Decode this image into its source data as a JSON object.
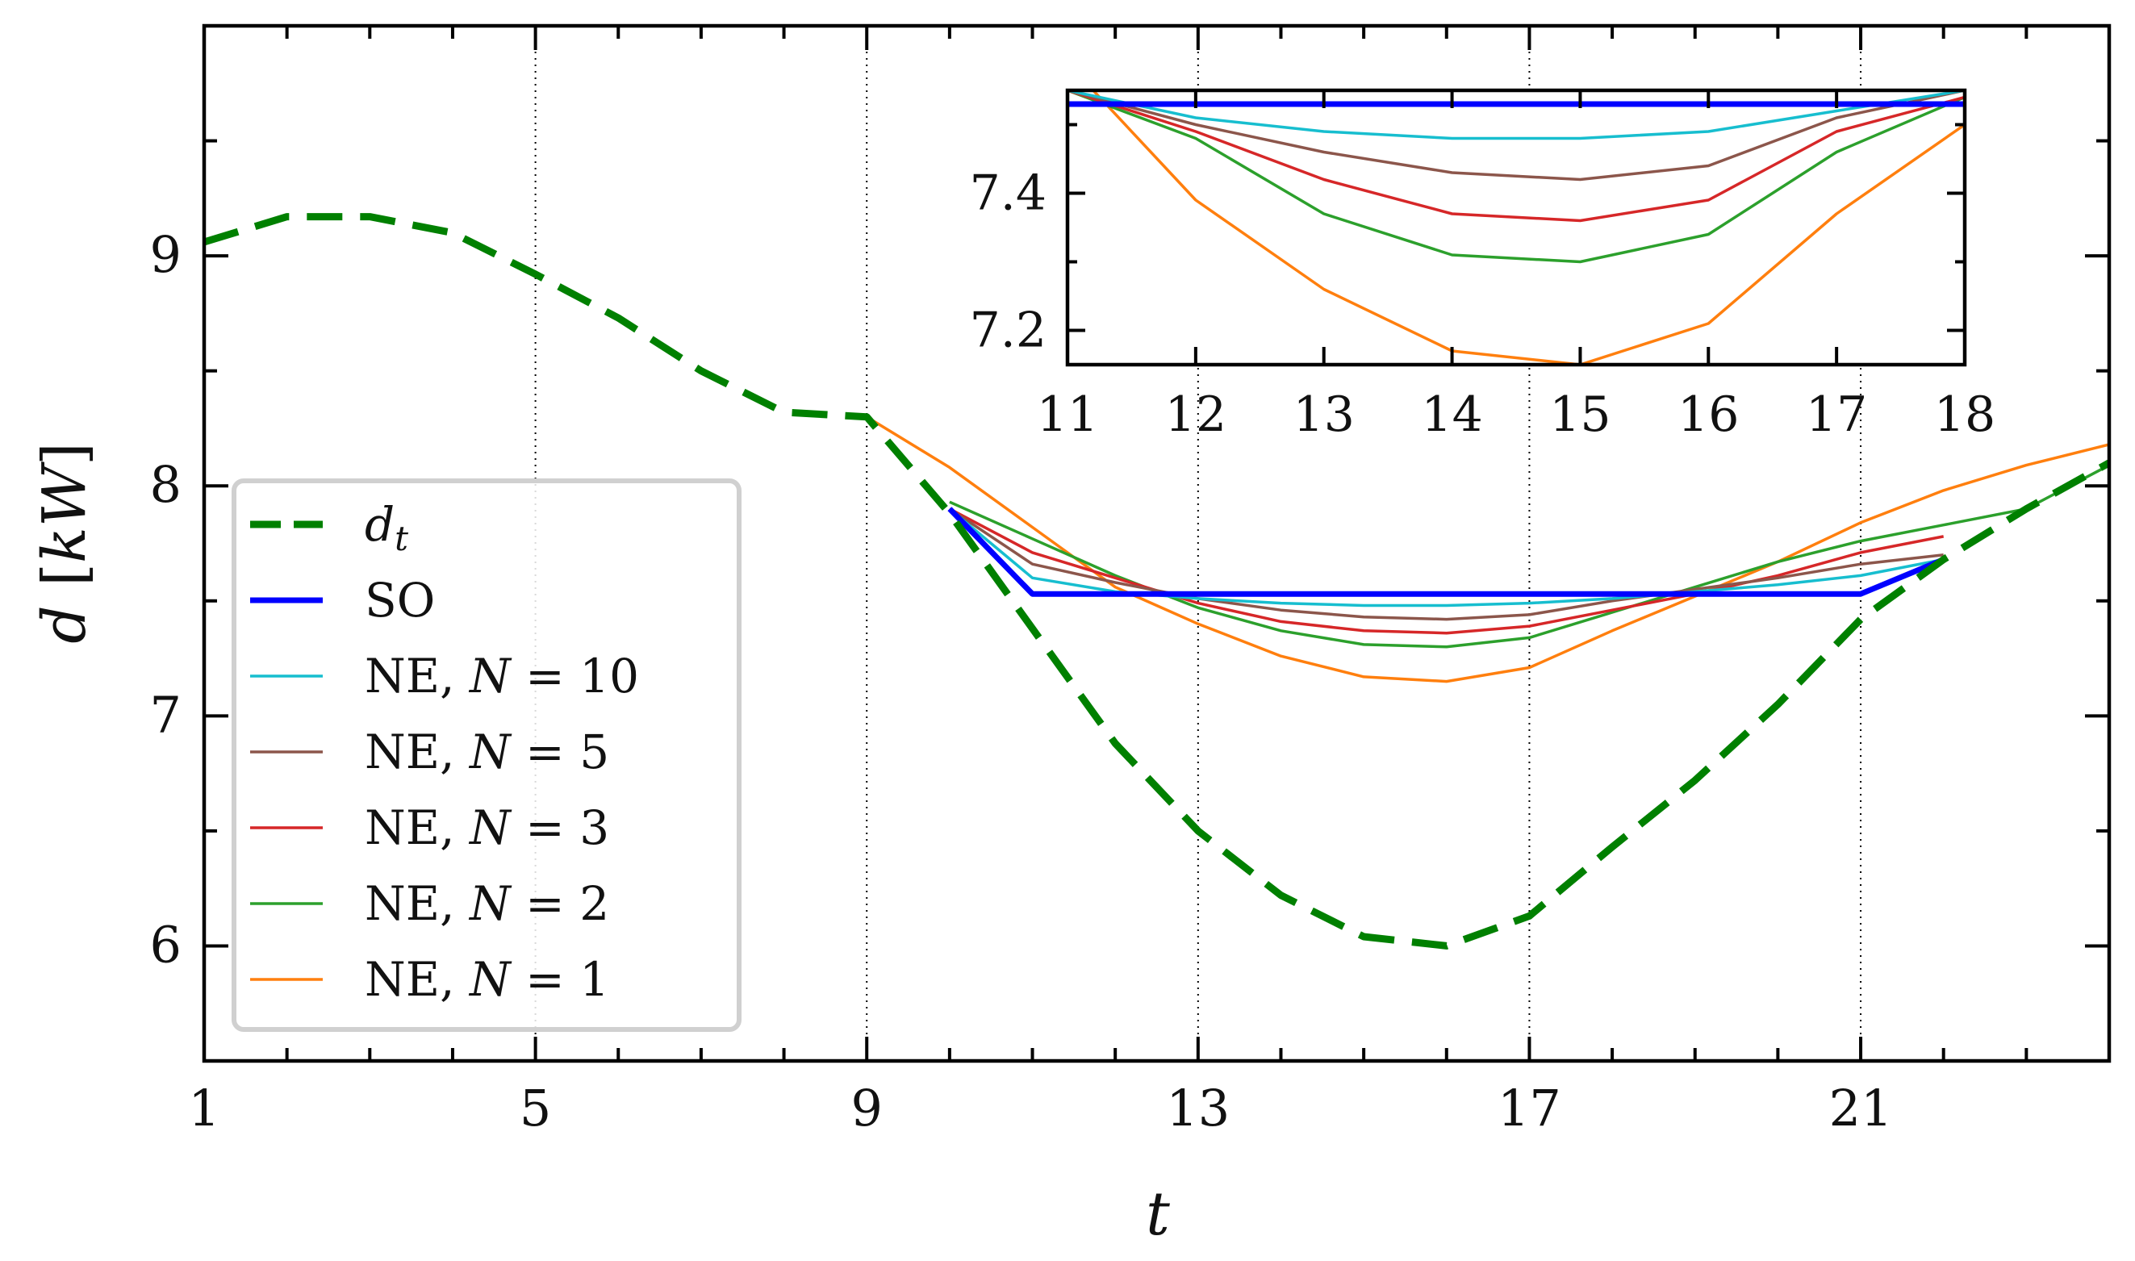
{
  "chart_data": [
    {
      "type": "line",
      "role": "main",
      "title": "",
      "xlabel": "t",
      "ylabel_main": "d",
      "ylabel_unit": "kW",
      "xlim": [
        1,
        24
      ],
      "ylim": [
        5.5,
        10.0
      ],
      "xticks": [
        1,
        5,
        9,
        13,
        17,
        21
      ],
      "yticks": [
        6,
        7,
        8,
        9
      ],
      "x_minor_step": 1,
      "y_minor_step": 0.5,
      "vertical_reference_lines": [
        5,
        9,
        13,
        17,
        21
      ],
      "legend_position": "lower-left",
      "series": [
        {
          "id": "dt",
          "name": "d",
          "name_sub": "t",
          "color": "#008000",
          "style": "dashed",
          "width": 9,
          "x": [
            1,
            2,
            3,
            4,
            5,
            6,
            7,
            8,
            9,
            10,
            11,
            12,
            13,
            14,
            15,
            16,
            17,
            18,
            19,
            20,
            21,
            22,
            23,
            24
          ],
          "y": [
            9.06,
            9.17,
            9.17,
            9.1,
            8.92,
            8.73,
            8.5,
            8.32,
            8.3,
            7.88,
            7.38,
            6.88,
            6.5,
            6.22,
            6.04,
            6.0,
            6.13,
            6.43,
            6.72,
            7.05,
            7.42,
            7.68,
            7.9,
            8.1
          ]
        },
        {
          "id": "so",
          "name": "SO",
          "color": "#0000ff",
          "style": "solid",
          "width": 7,
          "x": [
            10,
            11,
            12,
            13,
            14,
            15,
            16,
            17,
            18,
            19,
            20,
            21,
            22
          ],
          "y": [
            7.9,
            7.53,
            7.53,
            7.53,
            7.53,
            7.53,
            7.53,
            7.53,
            7.53,
            7.53,
            7.53,
            7.53,
            7.68
          ]
        },
        {
          "id": "ne10",
          "name": "NE, ",
          "name_var": "N",
          "name_val": " = 10",
          "color": "#17becf",
          "style": "solid",
          "width": 3.5,
          "x": [
            10,
            11,
            12,
            13,
            14,
            15,
            16,
            17,
            18,
            19,
            20,
            21,
            22
          ],
          "y": [
            7.9,
            7.6,
            7.54,
            7.51,
            7.49,
            7.48,
            7.48,
            7.49,
            7.51,
            7.54,
            7.57,
            7.61,
            7.68
          ]
        },
        {
          "id": "ne5",
          "name": "NE, ",
          "name_var": "N",
          "name_val": " = 5",
          "color": "#8c564b",
          "style": "solid",
          "width": 3.5,
          "x": [
            10,
            11,
            12,
            13,
            14,
            15,
            16,
            17,
            18,
            19,
            20,
            21,
            22
          ],
          "y": [
            7.9,
            7.66,
            7.58,
            7.51,
            7.46,
            7.43,
            7.42,
            7.44,
            7.5,
            7.55,
            7.6,
            7.66,
            7.7
          ]
        },
        {
          "id": "ne3",
          "name": "NE, ",
          "name_var": "N",
          "name_val": " = 3",
          "color": "#d62728",
          "style": "solid",
          "width": 3.5,
          "x": [
            10,
            11,
            12,
            13,
            14,
            15,
            16,
            17,
            18,
            19,
            20,
            21,
            22
          ],
          "y": [
            7.9,
            7.71,
            7.6,
            7.49,
            7.41,
            7.37,
            7.36,
            7.39,
            7.46,
            7.53,
            7.61,
            7.71,
            7.78
          ]
        },
        {
          "id": "ne2",
          "name": "NE, ",
          "name_var": "N",
          "name_val": " = 2",
          "color": "#2ca02c",
          "style": "solid",
          "width": 3.5,
          "x": [
            10,
            11,
            12,
            13,
            14,
            15,
            16,
            17,
            18,
            19,
            20,
            21,
            22,
            23,
            24
          ],
          "y": [
            7.93,
            7.77,
            7.61,
            7.47,
            7.37,
            7.31,
            7.3,
            7.34,
            7.45,
            7.56,
            7.67,
            7.76,
            7.83,
            7.9,
            8.09
          ]
        },
        {
          "id": "ne1",
          "name": "NE, ",
          "name_var": "N",
          "name_val": " = 1",
          "color": "#ff7f0e",
          "style": "solid",
          "width": 3.5,
          "x": [
            9,
            10,
            11,
            12,
            13,
            14,
            15,
            16,
            17,
            18,
            19,
            20,
            21,
            22,
            23,
            24
          ],
          "y": [
            8.3,
            8.08,
            7.82,
            7.56,
            7.4,
            7.26,
            7.17,
            7.15,
            7.21,
            7.37,
            7.52,
            7.67,
            7.84,
            7.98,
            8.09,
            8.18
          ]
        }
      ]
    },
    {
      "type": "line",
      "role": "inset",
      "xlim": [
        11,
        18
      ],
      "ylim": [
        7.15,
        7.55
      ],
      "xticks": [
        11,
        12,
        13,
        14,
        15,
        16,
        17,
        18
      ],
      "yticks": [
        7.2,
        7.4
      ],
      "ytick_labels": [
        "7.2",
        "7.4"
      ],
      "y_minor_step": 0.1,
      "series": [
        {
          "id": "so",
          "color": "#0000ff",
          "width": 7,
          "x": [
            11,
            12,
            13,
            14,
            15,
            16,
            17,
            18
          ],
          "y": [
            7.53,
            7.53,
            7.53,
            7.53,
            7.53,
            7.53,
            7.53,
            7.53
          ]
        },
        {
          "id": "ne10",
          "color": "#17becf",
          "width": 3.5,
          "x": [
            11,
            12,
            13,
            14,
            15,
            16,
            17,
            18
          ],
          "y": [
            7.55,
            7.51,
            7.49,
            7.48,
            7.48,
            7.49,
            7.52,
            7.55
          ]
        },
        {
          "id": "ne5",
          "color": "#8c564b",
          "width": 3.5,
          "x": [
            11,
            12,
            13,
            14,
            15,
            16,
            17,
            18
          ],
          "y": [
            7.55,
            7.5,
            7.46,
            7.43,
            7.42,
            7.44,
            7.51,
            7.55
          ]
        },
        {
          "id": "ne3",
          "color": "#d62728",
          "width": 3.5,
          "x": [
            11,
            12,
            13,
            14,
            15,
            16,
            17,
            18
          ],
          "y": [
            7.55,
            7.49,
            7.42,
            7.37,
            7.36,
            7.39,
            7.49,
            7.54
          ]
        },
        {
          "id": "ne2",
          "color": "#2ca02c",
          "width": 3.5,
          "x": [
            11,
            12,
            13,
            14,
            15,
            16,
            17,
            18
          ],
          "y": [
            7.55,
            7.48,
            7.37,
            7.31,
            7.3,
            7.34,
            7.46,
            7.54
          ]
        },
        {
          "id": "ne1",
          "color": "#ff7f0e",
          "width": 3.5,
          "x": [
            11.2,
            12,
            13,
            14,
            15,
            16,
            17,
            18
          ],
          "y": [
            7.55,
            7.39,
            7.26,
            7.17,
            7.15,
            7.21,
            7.37,
            7.5
          ]
        }
      ]
    }
  ]
}
